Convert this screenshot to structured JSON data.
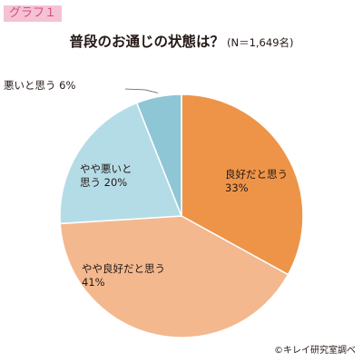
{
  "tag_label": "グラフ１",
  "title": "普段のお通じの状態は？",
  "subtitle": "(N＝1,649名)",
  "credit": "©キレイ研究室調べ",
  "chart_data": {
    "type": "pie",
    "title": "普段のお通じの状態は？",
    "n_label": "(N＝1,649名)",
    "start": "12 o'clock",
    "direction": "clockwise",
    "slices": [
      {
        "label_lines": [
          "良好だと思う",
          "33%"
        ],
        "value": 33,
        "color": "#ee9449"
      },
      {
        "label_lines": [
          "やや良好だと思う",
          "41%"
        ],
        "value": 41,
        "color": "#f4b88e"
      },
      {
        "label_lines": [
          "やや悪いと",
          "思う 20%"
        ],
        "value": 20,
        "color": "#b4dce6"
      },
      {
        "label_lines": [
          "悪いと思う 6%"
        ],
        "value": 6,
        "color": "#8ec6d6",
        "callout": true
      }
    ]
  }
}
